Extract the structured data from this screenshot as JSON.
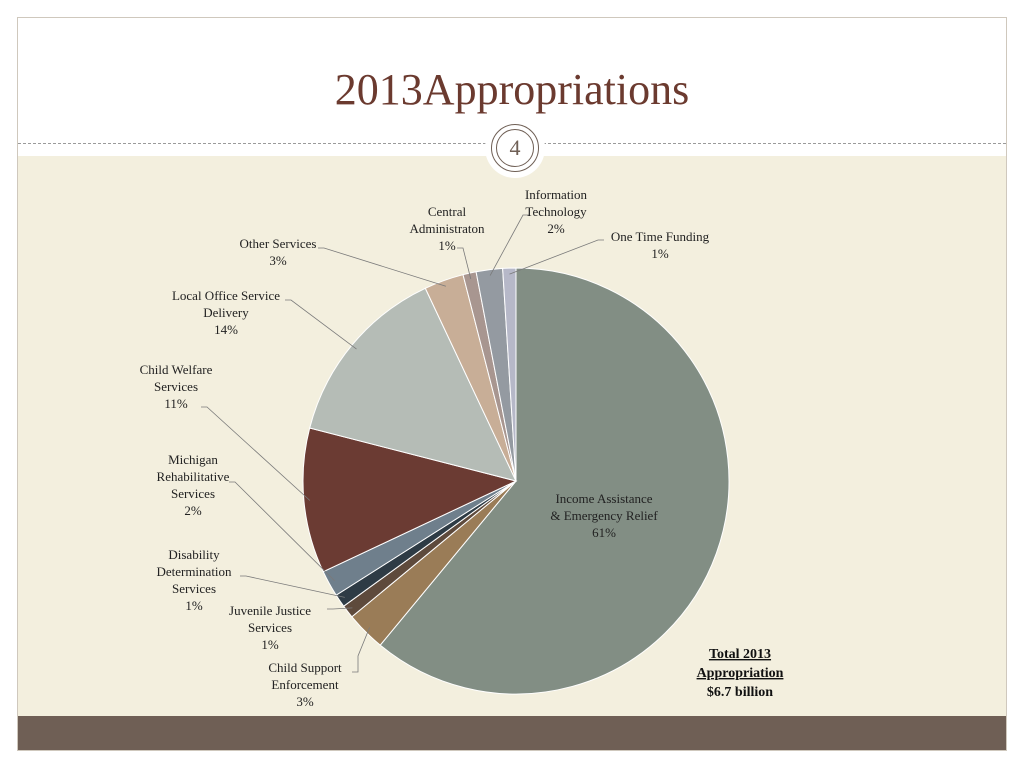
{
  "title": "2013Appropriations",
  "page_number": "4",
  "colors": {
    "title": "#6b3a2f",
    "content_background": "#f3efde",
    "footer_bar": "#6f5f55"
  },
  "chart_data": {
    "type": "pie",
    "title": "",
    "unit": "%",
    "start_angle": "12 o'clock, clockwise",
    "slices": [
      {
        "label": [
          "Income Assistance",
          "& Emergency Relief"
        ],
        "value": 61,
        "value_label": "61%",
        "color": "#828e84"
      },
      {
        "label": [
          "Child Support",
          "Enforcement"
        ],
        "value": 3,
        "value_label": "3%",
        "color": "#9a7c57"
      },
      {
        "label": [
          "Juvenile Justice",
          "Services"
        ],
        "value": 1,
        "value_label": "1%",
        "color": "#5e4a3c"
      },
      {
        "label": [
          "Disability",
          "Determination",
          "Services"
        ],
        "value": 1,
        "value_label": "1%",
        "color": "#2e3b45"
      },
      {
        "label": [
          "Michigan",
          "Rehabilitative",
          "Services"
        ],
        "value": 2,
        "value_label": "2%",
        "color": "#6f7f8c"
      },
      {
        "label": [
          "Child Welfare",
          "Services"
        ],
        "value": 11,
        "value_label": "11%",
        "color": "#6b3b33"
      },
      {
        "label": [
          "Local Office Service",
          "Delivery"
        ],
        "value": 14,
        "value_label": "14%",
        "color": "#b5bcb6"
      },
      {
        "label": [
          "Other Services"
        ],
        "value": 3,
        "value_label": "3%",
        "color": "#c8ae97"
      },
      {
        "label": [
          "Central",
          "Administraton"
        ],
        "value": 1,
        "value_label": "1%",
        "color": "#a89690"
      },
      {
        "label": [
          "Information",
          "Technology"
        ],
        "value": 2,
        "value_label": "2%",
        "color": "#949aa1"
      },
      {
        "label": [
          "One Time Funding"
        ],
        "value": 1,
        "value_label": "1%",
        "color": "#b6b8c8"
      }
    ],
    "annotation": [
      "Total 2013",
      "Appropriation",
      "$6.7 billion"
    ]
  }
}
